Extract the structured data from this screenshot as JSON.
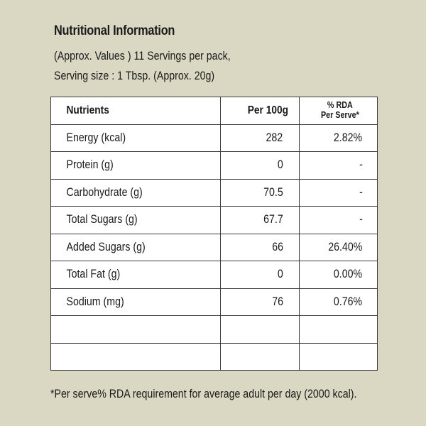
{
  "header": {
    "title": "Nutritional Information",
    "line1": "(Approx. Values ) 11 Servings per pack,",
    "line2": "Serving size : 1 Tbsp. (Approx. 20g)"
  },
  "table": {
    "headers": {
      "nutrients": "Nutrients",
      "per100g": "Per 100g",
      "rda_line1": "% RDA",
      "rda_line2": "Per Serve*"
    },
    "rows": [
      {
        "name": "Energy (kcal)",
        "per100g": "282",
        "rda": "2.82%"
      },
      {
        "name": "Protein (g)",
        "per100g": "0",
        "rda": "-"
      },
      {
        "name": "Carbohydrate (g)",
        "per100g": "70.5",
        "rda": "-"
      },
      {
        "name": "Total Sugars (g)",
        "per100g": "67.7",
        "rda": "-"
      },
      {
        "name": "Added Sugars (g)",
        "per100g": "66",
        "rda": "26.40%"
      },
      {
        "name": "Total Fat (g)",
        "per100g": "0",
        "rda": "0.00%"
      },
      {
        "name": "Sodium (mg)",
        "per100g": "76",
        "rda": "0.76%"
      },
      {
        "name": "",
        "per100g": "",
        "rda": ""
      },
      {
        "name": "",
        "per100g": "",
        "rda": ""
      }
    ]
  },
  "footnote": "*Per serve% RDA requirement for average adult per day (2000 kcal).",
  "colors": {
    "background": "#dad8c3",
    "table_bg": "#ffffff",
    "border": "#3a3a3a",
    "text": "#1a1a1a"
  }
}
